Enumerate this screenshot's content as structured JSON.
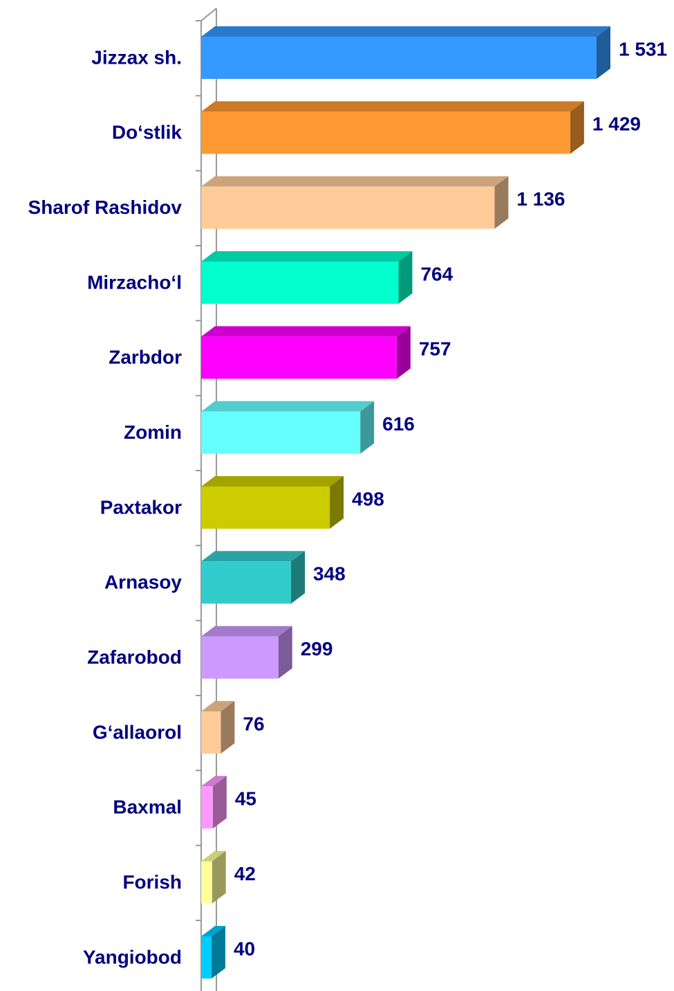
{
  "chart_data": {
    "type": "bar3d-horizontal",
    "categories": [
      "Jizzax sh.",
      "Do‘stlik",
      "Sharof Rashidov",
      "Mirzacho‘l",
      "Zarbdor",
      "Zomin",
      "Paxtakor",
      "Arnasoy",
      "Zafarobod",
      "G‘allaorol",
      "Baxmal",
      "Forish",
      "Yangiobod"
    ],
    "values": [
      1531,
      1429,
      1136,
      764,
      757,
      616,
      498,
      348,
      299,
      76,
      45,
      42,
      40
    ],
    "value_labels": [
      "1 531",
      "1 429",
      "1 136",
      "764",
      "757",
      "616",
      "498",
      "348",
      "299",
      "76",
      "45",
      "42",
      "40"
    ],
    "colors": [
      "#3399ff",
      "#ff9933",
      "#ffcc99",
      "#00ffcc",
      "#ff00ff",
      "#66ffff",
      "#cccc00",
      "#33cccc",
      "#cc99ff",
      "#ffcc99",
      "#ff99ff",
      "#ffff99",
      "#00ccff"
    ]
  }
}
